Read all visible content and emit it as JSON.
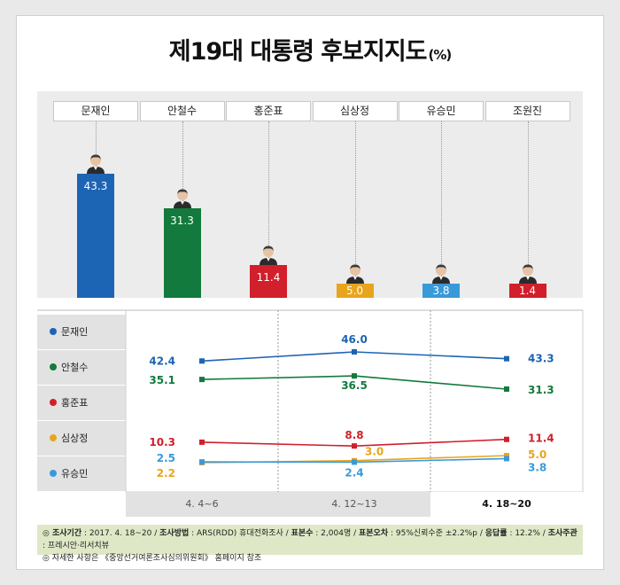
{
  "title": "제19대 대통령 후보지지도",
  "title_unit": "(%)",
  "colors": {
    "moon": "#1c64b4",
    "ahn": "#127a3c",
    "hong": "#d11f2b",
    "sim": "#e8a51c",
    "yoo": "#3a9ad9",
    "cho": "#d11f2b"
  },
  "chart_data": [
    {
      "type": "bar",
      "categories": [
        "문재인",
        "안철수",
        "홍준표",
        "심상정",
        "유승민",
        "조원진"
      ],
      "values": [
        43.3,
        31.3,
        11.4,
        5.0,
        3.8,
        1.4
      ],
      "value_labels": [
        "43.3",
        "31.3",
        "11.4",
        "5.0",
        "3.8",
        "1.4"
      ],
      "ylim": [
        0,
        50
      ]
    },
    {
      "type": "line",
      "x": [
        "4. 4~6",
        "4. 12~13",
        "4. 18~20"
      ],
      "series": [
        {
          "name": "문재인",
          "values": [
            42.4,
            46.0,
            43.3
          ],
          "labels": [
            "42.4",
            "46.0",
            "43.3"
          ]
        },
        {
          "name": "안철수",
          "values": [
            35.1,
            36.5,
            31.3
          ],
          "labels": [
            "35.1",
            "36.5",
            "31.3"
          ]
        },
        {
          "name": "홍준표",
          "values": [
            10.3,
            8.8,
            11.4
          ],
          "labels": [
            "10.3",
            "8.8",
            "11.4"
          ]
        },
        {
          "name": "심상정",
          "values": [
            2.2,
            3.0,
            5.0
          ],
          "labels": [
            "2.2",
            "3.0",
            "5.0"
          ]
        },
        {
          "name": "유승민",
          "values": [
            2.5,
            2.4,
            3.8
          ],
          "labels": [
            "2.5",
            "2.4",
            "3.8"
          ]
        }
      ]
    }
  ],
  "footer": {
    "line1": [
      {
        "t": "◎ 조사기간",
        "b": true
      },
      {
        "t": " : 2017. 4. 18~20 / "
      },
      {
        "t": "조사방법",
        "b": true
      },
      {
        "t": " : ARS(RDD) 휴대전화조사 / "
      },
      {
        "t": "표본수",
        "b": true
      },
      {
        "t": " : 2,004명 / "
      },
      {
        "t": "표본오차",
        "b": true
      },
      {
        "t": " : 95%신뢰수준 ±2.2%p / "
      },
      {
        "t": "응답률",
        "b": true
      },
      {
        "t": " : 12.2% / "
      },
      {
        "t": "조사주관",
        "b": true
      },
      {
        "t": " : 프레시안·리서치뷰"
      }
    ],
    "line2": "◎ 자세한 사항은 《중앙선거여론조사심의위원회》 홈페이지 참조"
  }
}
